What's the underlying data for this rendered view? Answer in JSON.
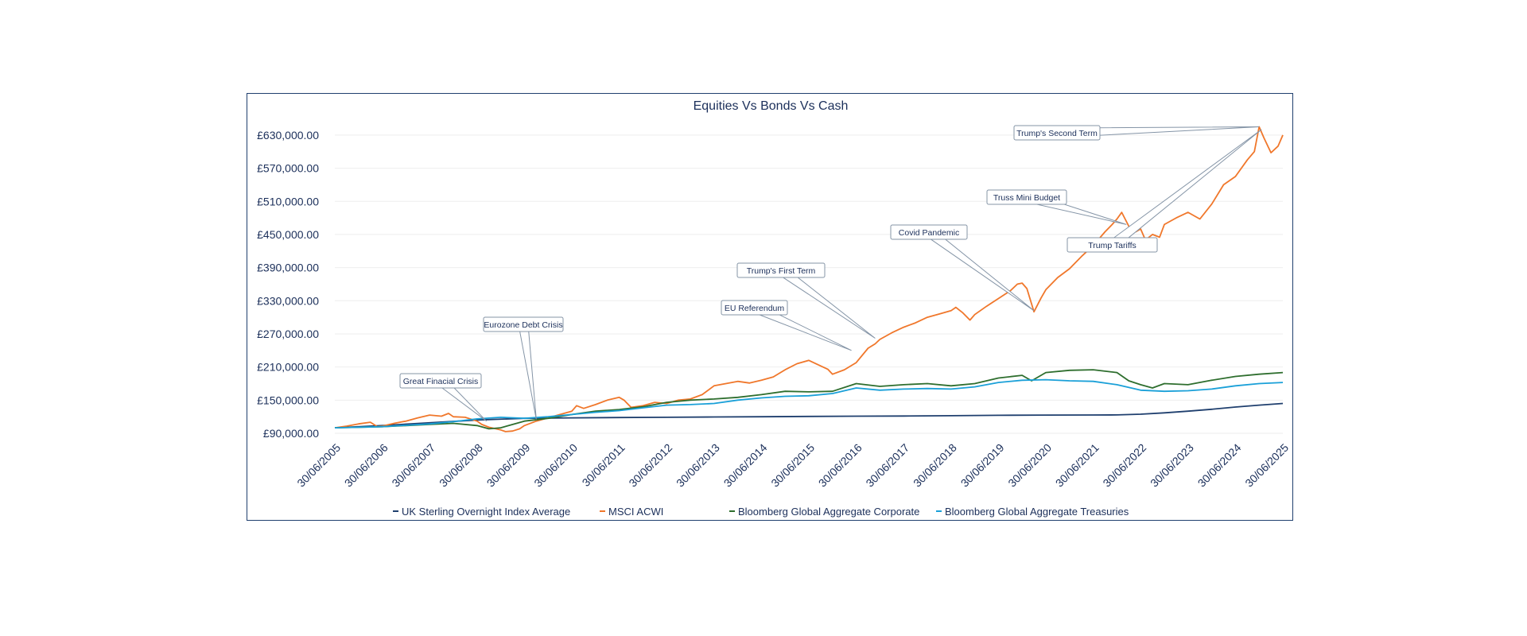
{
  "chart_data": {
    "type": "line",
    "title": "Equities Vs Bonds Vs Cash",
    "ylim": [
      90000,
      650000
    ],
    "y_ticks": [
      {
        "value": 90000,
        "label": "£90,000.00"
      },
      {
        "value": 150000,
        "label": "£150,000.00"
      },
      {
        "value": 210000,
        "label": "£210,000.00"
      },
      {
        "value": 270000,
        "label": "£270,000.00"
      },
      {
        "value": 330000,
        "label": "£330,000.00"
      },
      {
        "value": 390000,
        "label": "£390,000.00"
      },
      {
        "value": 450000,
        "label": "£450,000.00"
      },
      {
        "value": 510000,
        "label": "£510,000.00"
      },
      {
        "value": 570000,
        "label": "£570,000.00"
      },
      {
        "value": 630000,
        "label": "£630,000.00"
      }
    ],
    "x_ticks": [
      "30/06/2005",
      "30/06/2006",
      "30/06/2007",
      "30/06/2008",
      "30/06/2009",
      "30/06/2010",
      "30/06/2011",
      "30/06/2012",
      "30/06/2013",
      "30/06/2014",
      "30/06/2015",
      "30/06/2016",
      "30/06/2017",
      "30/06/2018",
      "30/06/2019",
      "30/06/2020",
      "30/06/2021",
      "30/06/2022",
      "30/06/2023",
      "30/06/2024",
      "30/06/2025"
    ],
    "legend_position": "bottom",
    "series": [
      {
        "name": "UK Sterling Overnight Index Average",
        "color": "#1f3f6e",
        "points": [
          [
            2005.5,
            100000
          ],
          [
            2006.5,
            104000
          ],
          [
            2007.5,
            109000
          ],
          [
            2008.5,
            114000
          ],
          [
            2009.5,
            117000
          ],
          [
            2010.5,
            118000
          ],
          [
            2011.5,
            118500
          ],
          [
            2012.5,
            119000
          ],
          [
            2013.5,
            119500
          ],
          [
            2014.5,
            120000
          ],
          [
            2015.5,
            120500
          ],
          [
            2016.5,
            121000
          ],
          [
            2017.5,
            121300
          ],
          [
            2018.5,
            121800
          ],
          [
            2019.5,
            122600
          ],
          [
            2020.5,
            123000
          ],
          [
            2021.5,
            123100
          ],
          [
            2022.0,
            123300
          ],
          [
            2022.5,
            124500
          ],
          [
            2023.0,
            127000
          ],
          [
            2023.5,
            130000
          ],
          [
            2024.0,
            133500
          ],
          [
            2024.5,
            137500
          ],
          [
            2025.0,
            141000
          ],
          [
            2025.5,
            144000
          ]
        ]
      },
      {
        "name": "MSCI ACWI",
        "color": "#f0772b",
        "points": [
          [
            2005.5,
            100000
          ],
          [
            2005.75,
            103000
          ],
          [
            2006.0,
            107000
          ],
          [
            2006.25,
            110000
          ],
          [
            2006.4,
            102000
          ],
          [
            2006.5,
            103000
          ],
          [
            2006.75,
            108000
          ],
          [
            2007.0,
            112000
          ],
          [
            2007.25,
            118000
          ],
          [
            2007.5,
            123000
          ],
          [
            2007.75,
            121000
          ],
          [
            2007.9,
            126000
          ],
          [
            2008.0,
            120000
          ],
          [
            2008.25,
            119000
          ],
          [
            2008.5,
            112000
          ],
          [
            2008.6,
            106000
          ],
          [
            2008.75,
            101000
          ],
          [
            2008.9,
            98000
          ],
          [
            2009.0,
            96000
          ],
          [
            2009.1,
            93000
          ],
          [
            2009.25,
            94000
          ],
          [
            2009.4,
            98000
          ],
          [
            2009.5,
            104000
          ],
          [
            2009.75,
            112000
          ],
          [
            2010.0,
            118000
          ],
          [
            2010.25,
            124000
          ],
          [
            2010.5,
            130000
          ],
          [
            2010.6,
            140000
          ],
          [
            2010.75,
            135000
          ],
          [
            2011.0,
            142000
          ],
          [
            2011.25,
            150000
          ],
          [
            2011.5,
            155000
          ],
          [
            2011.6,
            150000
          ],
          [
            2011.75,
            137000
          ],
          [
            2012.0,
            140000
          ],
          [
            2012.25,
            146000
          ],
          [
            2012.5,
            144000
          ],
          [
            2012.75,
            150000
          ],
          [
            2013.0,
            152000
          ],
          [
            2013.25,
            160000
          ],
          [
            2013.5,
            176000
          ],
          [
            2013.75,
            180000
          ],
          [
            2014.0,
            184000
          ],
          [
            2014.25,
            181000
          ],
          [
            2014.5,
            186000
          ],
          [
            2014.75,
            192000
          ],
          [
            2015.0,
            205000
          ],
          [
            2015.25,
            216000
          ],
          [
            2015.5,
            222000
          ],
          [
            2015.75,
            212000
          ],
          [
            2015.9,
            206000
          ],
          [
            2016.0,
            197000
          ],
          [
            2016.25,
            205000
          ],
          [
            2016.5,
            218000
          ],
          [
            2016.75,
            244000
          ],
          [
            2016.9,
            252000
          ],
          [
            2017.0,
            260000
          ],
          [
            2017.25,
            272000
          ],
          [
            2017.5,
            282000
          ],
          [
            2017.75,
            290000
          ],
          [
            2018.0,
            300000
          ],
          [
            2018.25,
            306000
          ],
          [
            2018.5,
            312000
          ],
          [
            2018.6,
            318000
          ],
          [
            2018.75,
            308000
          ],
          [
            2018.9,
            295000
          ],
          [
            2019.0,
            305000
          ],
          [
            2019.25,
            320000
          ],
          [
            2019.5,
            334000
          ],
          [
            2019.75,
            348000
          ],
          [
            2019.9,
            360000
          ],
          [
            2020.0,
            362000
          ],
          [
            2020.1,
            352000
          ],
          [
            2020.25,
            310000
          ],
          [
            2020.4,
            335000
          ],
          [
            2020.5,
            350000
          ],
          [
            2020.75,
            372000
          ],
          [
            2021.0,
            388000
          ],
          [
            2021.25,
            410000
          ],
          [
            2021.5,
            430000
          ],
          [
            2021.75,
            455000
          ],
          [
            2021.9,
            468000
          ],
          [
            2022.0,
            478000
          ],
          [
            2022.1,
            490000
          ],
          [
            2022.25,
            465000
          ],
          [
            2022.4,
            455000
          ],
          [
            2022.5,
            460000
          ],
          [
            2022.6,
            440000
          ],
          [
            2022.75,
            450000
          ],
          [
            2022.9,
            445000
          ],
          [
            2023.0,
            468000
          ],
          [
            2023.25,
            480000
          ],
          [
            2023.5,
            490000
          ],
          [
            2023.75,
            478000
          ],
          [
            2024.0,
            505000
          ],
          [
            2024.25,
            540000
          ],
          [
            2024.5,
            555000
          ],
          [
            2024.75,
            585000
          ],
          [
            2024.9,
            600000
          ],
          [
            2025.0,
            645000
          ],
          [
            2025.1,
            625000
          ],
          [
            2025.25,
            598000
          ],
          [
            2025.4,
            610000
          ],
          [
            2025.5,
            630000
          ]
        ]
      },
      {
        "name": "Bloomberg Global Aggregate Corporate",
        "color": "#2e6e2e",
        "points": [
          [
            2005.5,
            100000
          ],
          [
            2006.5,
            102000
          ],
          [
            2007.5,
            106000
          ],
          [
            2008.0,
            108000
          ],
          [
            2008.5,
            104000
          ],
          [
            2008.75,
            98000
          ],
          [
            2009.0,
            100000
          ],
          [
            2009.5,
            112000
          ],
          [
            2010.0,
            117000
          ],
          [
            2010.5,
            124000
          ],
          [
            2011.0,
            130000
          ],
          [
            2011.5,
            133000
          ],
          [
            2012.0,
            138000
          ],
          [
            2012.5,
            146000
          ],
          [
            2013.0,
            150000
          ],
          [
            2013.5,
            152000
          ],
          [
            2014.0,
            155000
          ],
          [
            2014.5,
            160000
          ],
          [
            2015.0,
            166000
          ],
          [
            2015.5,
            165000
          ],
          [
            2016.0,
            166000
          ],
          [
            2016.5,
            180000
          ],
          [
            2017.0,
            175000
          ],
          [
            2017.5,
            178000
          ],
          [
            2018.0,
            180000
          ],
          [
            2018.5,
            176000
          ],
          [
            2019.0,
            180000
          ],
          [
            2019.5,
            190000
          ],
          [
            2020.0,
            195000
          ],
          [
            2020.2,
            185000
          ],
          [
            2020.5,
            200000
          ],
          [
            2021.0,
            204000
          ],
          [
            2021.5,
            205000
          ],
          [
            2022.0,
            200000
          ],
          [
            2022.25,
            185000
          ],
          [
            2022.5,
            178000
          ],
          [
            2022.75,
            172000
          ],
          [
            2023.0,
            180000
          ],
          [
            2023.5,
            178000
          ],
          [
            2024.0,
            186000
          ],
          [
            2024.5,
            193000
          ],
          [
            2025.0,
            197000
          ],
          [
            2025.5,
            200000
          ]
        ]
      },
      {
        "name": "Bloomberg Global Aggregate Treasuries",
        "color": "#1aa0d8",
        "points": [
          [
            2005.5,
            100000
          ],
          [
            2006.5,
            102000
          ],
          [
            2007.5,
            107000
          ],
          [
            2008.0,
            111000
          ],
          [
            2008.5,
            116000
          ],
          [
            2009.0,
            119000
          ],
          [
            2009.5,
            117000
          ],
          [
            2010.0,
            120000
          ],
          [
            2010.5,
            124000
          ],
          [
            2011.0,
            128000
          ],
          [
            2011.5,
            131000
          ],
          [
            2012.0,
            136000
          ],
          [
            2012.5,
            141000
          ],
          [
            2013.0,
            142000
          ],
          [
            2013.5,
            144000
          ],
          [
            2014.0,
            150000
          ],
          [
            2014.5,
            154000
          ],
          [
            2015.0,
            157000
          ],
          [
            2015.5,
            158000
          ],
          [
            2016.0,
            162000
          ],
          [
            2016.5,
            172000
          ],
          [
            2017.0,
            168000
          ],
          [
            2017.5,
            170000
          ],
          [
            2018.0,
            171000
          ],
          [
            2018.5,
            170000
          ],
          [
            2019.0,
            174000
          ],
          [
            2019.5,
            182000
          ],
          [
            2020.0,
            186000
          ],
          [
            2020.5,
            187000
          ],
          [
            2021.0,
            185000
          ],
          [
            2021.5,
            184000
          ],
          [
            2022.0,
            178000
          ],
          [
            2022.5,
            168000
          ],
          [
            2023.0,
            166000
          ],
          [
            2023.5,
            167000
          ],
          [
            2024.0,
            170000
          ],
          [
            2024.5,
            176000
          ],
          [
            2025.0,
            180000
          ],
          [
            2025.5,
            182000
          ]
        ]
      }
    ],
    "annotations": [
      {
        "label": "Great Finacial Crisis",
        "x": 2008.7,
        "y": 112000
      },
      {
        "label": "Eurozone Debt Crisis",
        "x": 2009.75,
        "y": 115000
      },
      {
        "label": "EU Referendum",
        "x": 2016.4,
        "y": 240000
      },
      {
        "label": "Trump's First Term",
        "x": 2016.9,
        "y": 262000
      },
      {
        "label": "Covid Pandemic",
        "x": 2020.25,
        "y": 312000
      },
      {
        "label": "Truss Mini Budget",
        "x": 2022.2,
        "y": 468000
      },
      {
        "label": "Trump's Second Term",
        "x": 2025.0,
        "y": 645000
      },
      {
        "label": "Trump Tariffs",
        "x": 2025.05,
        "y": 640000
      }
    ]
  }
}
